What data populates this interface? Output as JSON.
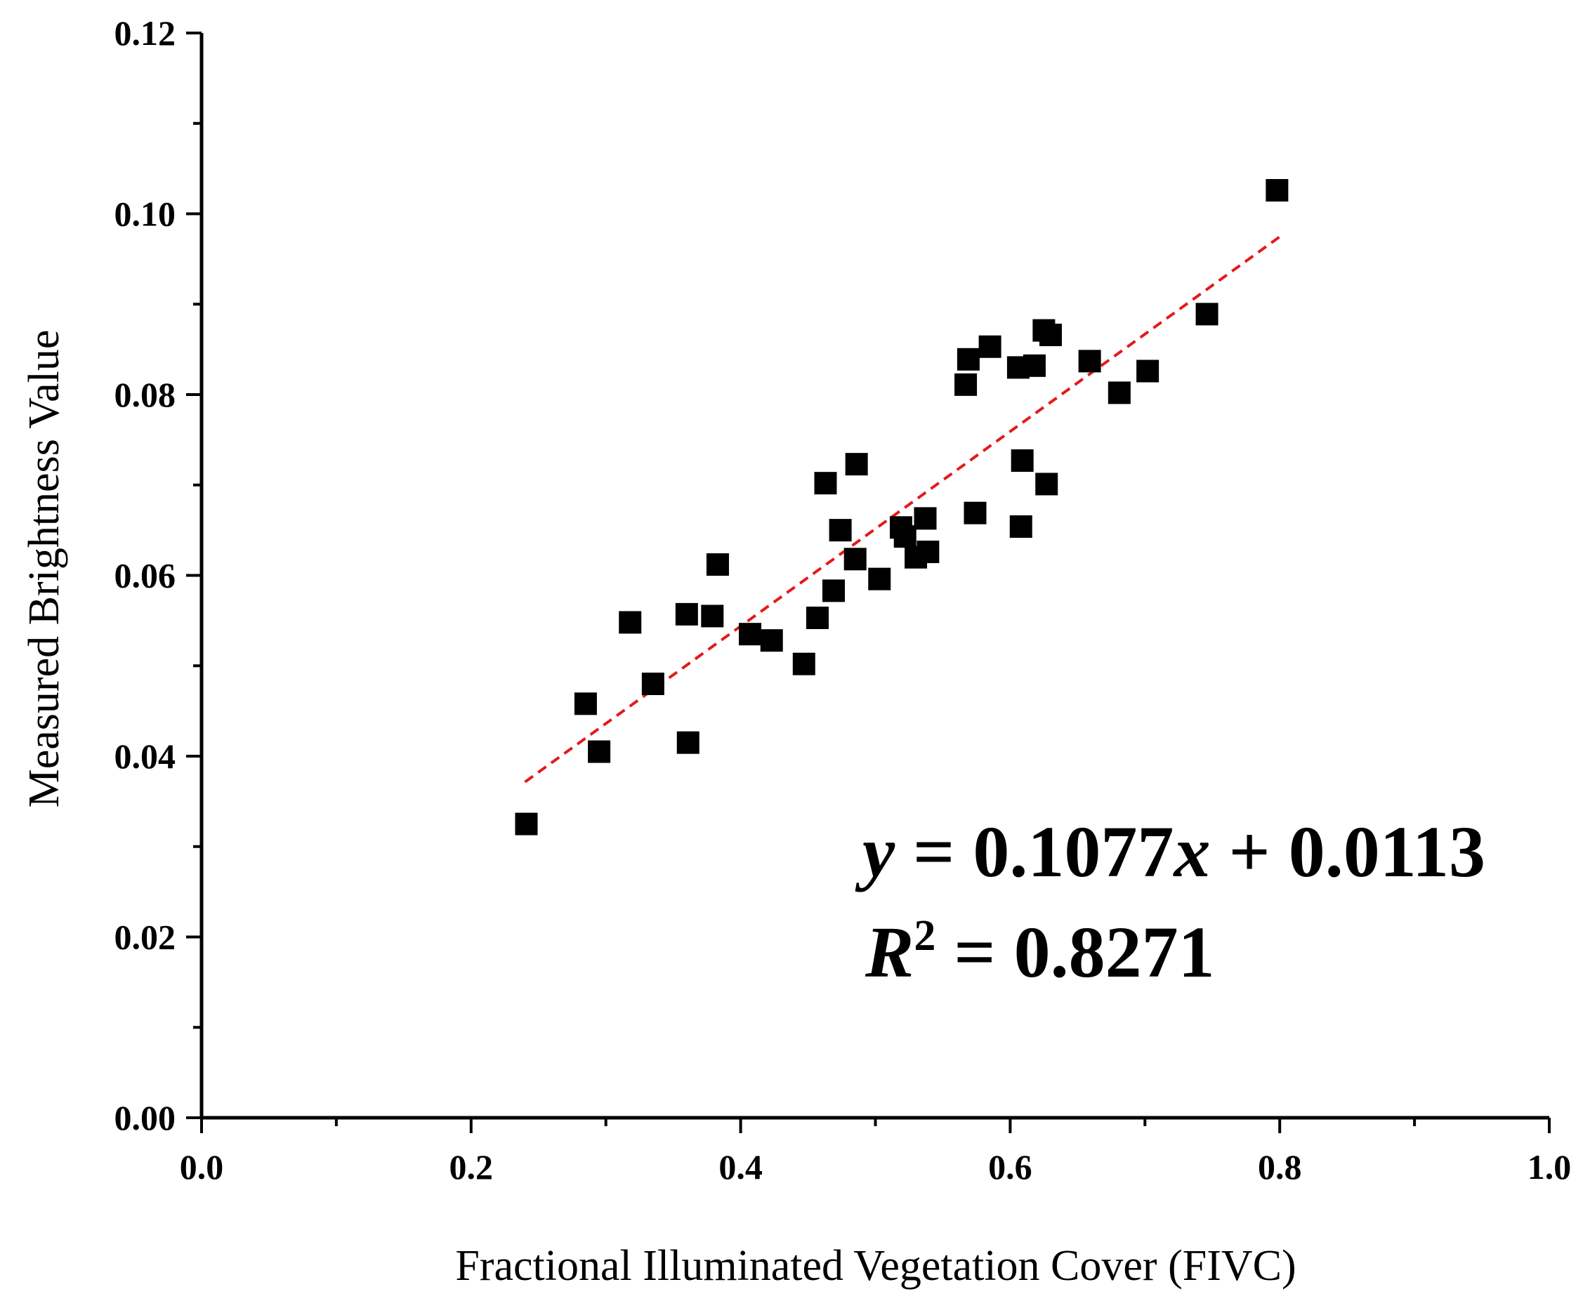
{
  "chart_data": {
    "type": "scatter",
    "xlabel": "Fractional Illuminated Vegetation Cover (FIVC)",
    "ylabel": "Measured Brightness Value",
    "xlim": [
      0.0,
      1.0
    ],
    "ylim": [
      0.0,
      0.12
    ],
    "x_ticks": [
      "0.0",
      "0.2",
      "0.4",
      "0.6",
      "0.8",
      "1.0"
    ],
    "y_ticks": [
      "0.00",
      "0.02",
      "0.04",
      "0.06",
      "0.08",
      "0.10",
      "0.12"
    ],
    "x_tick_values": [
      0.0,
      0.2,
      0.4,
      0.6,
      0.8,
      1.0
    ],
    "y_tick_values": [
      0.0,
      0.02,
      0.04,
      0.06,
      0.08,
      0.1,
      0.12
    ],
    "x_minor_step": 0.1,
    "y_minor_step": 0.01,
    "grid": false,
    "marker_color": "#000000",
    "fit_color": "#e31a1c",
    "points": [
      {
        "x": 0.241,
        "y": 0.0325
      },
      {
        "x": 0.285,
        "y": 0.0458
      },
      {
        "x": 0.295,
        "y": 0.0405
      },
      {
        "x": 0.318,
        "y": 0.0548
      },
      {
        "x": 0.335,
        "y": 0.048
      },
      {
        "x": 0.36,
        "y": 0.0557
      },
      {
        "x": 0.361,
        "y": 0.0415
      },
      {
        "x": 0.379,
        "y": 0.0555
      },
      {
        "x": 0.383,
        "y": 0.0612
      },
      {
        "x": 0.407,
        "y": 0.0535
      },
      {
        "x": 0.423,
        "y": 0.0528
      },
      {
        "x": 0.447,
        "y": 0.0502
      },
      {
        "x": 0.457,
        "y": 0.0553
      },
      {
        "x": 0.463,
        "y": 0.0702
      },
      {
        "x": 0.469,
        "y": 0.0583
      },
      {
        "x": 0.474,
        "y": 0.065
      },
      {
        "x": 0.485,
        "y": 0.0618
      },
      {
        "x": 0.486,
        "y": 0.0723
      },
      {
        "x": 0.503,
        "y": 0.0596
      },
      {
        "x": 0.519,
        "y": 0.0653
      },
      {
        "x": 0.522,
        "y": 0.0643
      },
      {
        "x": 0.53,
        "y": 0.062
      },
      {
        "x": 0.537,
        "y": 0.0663
      },
      {
        "x": 0.539,
        "y": 0.0626
      },
      {
        "x": 0.567,
        "y": 0.0811
      },
      {
        "x": 0.569,
        "y": 0.0839
      },
      {
        "x": 0.574,
        "y": 0.0669
      },
      {
        "x": 0.585,
        "y": 0.0853
      },
      {
        "x": 0.606,
        "y": 0.083
      },
      {
        "x": 0.608,
        "y": 0.0654
      },
      {
        "x": 0.609,
        "y": 0.0727
      },
      {
        "x": 0.618,
        "y": 0.0832
      },
      {
        "x": 0.625,
        "y": 0.0871
      },
      {
        "x": 0.627,
        "y": 0.0701
      },
      {
        "x": 0.63,
        "y": 0.0866
      },
      {
        "x": 0.659,
        "y": 0.0837
      },
      {
        "x": 0.681,
        "y": 0.0802
      },
      {
        "x": 0.702,
        "y": 0.0826
      },
      {
        "x": 0.746,
        "y": 0.0889
      },
      {
        "x": 0.798,
        "y": 0.1026
      }
    ],
    "fit": {
      "slope": 0.1077,
      "intercept": 0.0113,
      "x_range": [
        0.24,
        0.8
      ],
      "equation_parts": [
        "y",
        " = 0.1077",
        "x",
        " + 0.0113"
      ],
      "r2_parts": [
        "R",
        "2",
        " = 0.8271"
      ]
    }
  }
}
